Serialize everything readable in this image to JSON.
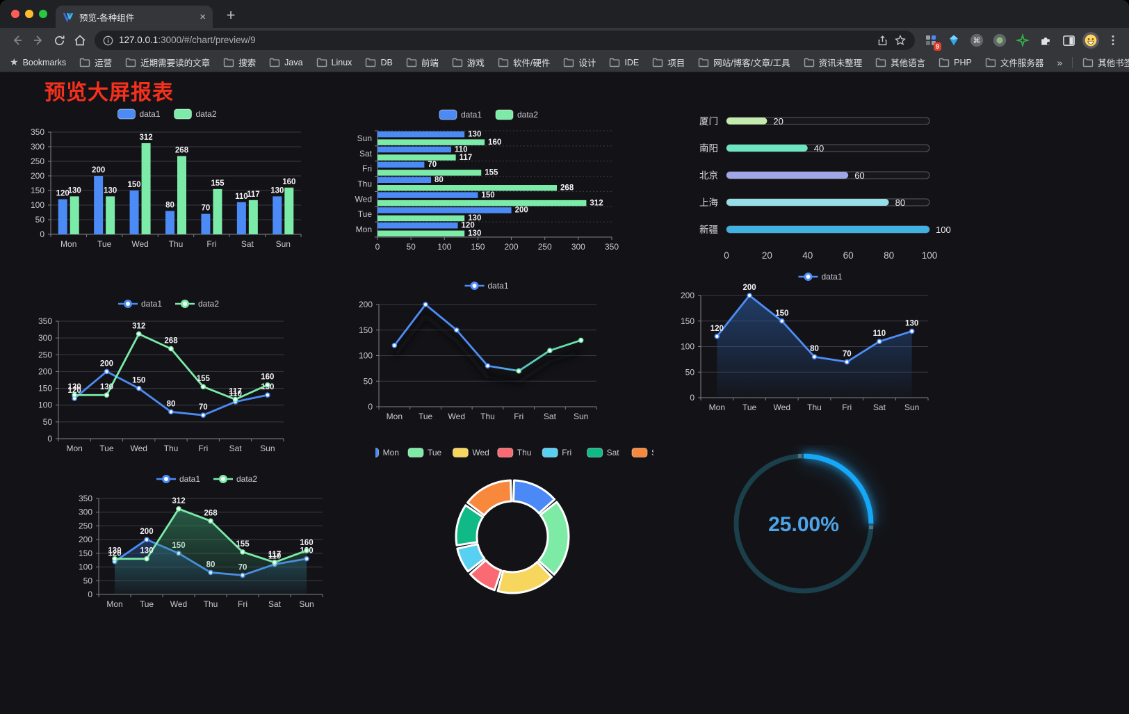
{
  "tab": {
    "title": "预览-各种组件",
    "close_glyph": "×",
    "new_tab_glyph": "+"
  },
  "toolbar": {
    "url_host": "127.0.0.1",
    "url_rest": ":3000/#/chart/preview/9",
    "ext_badge": "9"
  },
  "bookmarks": {
    "label": "Bookmarks",
    "items": [
      "运营",
      "近期需要读的文章",
      "搜索",
      "Java",
      "Linux",
      "DB",
      "前端",
      "游戏",
      "软件/硬件",
      "设计",
      "IDE",
      "项目",
      "网站/博客/文章/工具",
      "资讯未整理",
      "其他语言",
      "PHP",
      "文件服务器"
    ],
    "overflow": "»",
    "other": "其他书签"
  },
  "page": {
    "title": "预览大屏报表",
    "title_color": "#f5311d"
  },
  "palette": {
    "data1_blue": "#4C8BF5",
    "data2_green": "#7CEBA8",
    "grid": "#3a3a44",
    "tick_text": "#c9c9d2"
  },
  "chart_data": [
    {
      "id": "bar-grouped-vertical",
      "type": "bar",
      "categories": [
        "Mon",
        "Tue",
        "Wed",
        "Thu",
        "Fri",
        "Sat",
        "Sun"
      ],
      "series": [
        {
          "name": "data1",
          "color": "#4C8BF5",
          "values": [
            120,
            200,
            150,
            80,
            70,
            110,
            130
          ]
        },
        {
          "name": "data2",
          "color": "#7CEBA8",
          "values": [
            130,
            130,
            312,
            268,
            155,
            117,
            160
          ]
        }
      ],
      "ylim": [
        0,
        350
      ],
      "ystep": 50,
      "legend": "rect",
      "value_labels": true
    },
    {
      "id": "bar-grouped-horizontal",
      "type": "bar",
      "orientation": "horizontal",
      "display_order": "reversed",
      "categories": [
        "Mon",
        "Tue",
        "Wed",
        "Thu",
        "Fri",
        "Sat",
        "Sun"
      ],
      "series": [
        {
          "name": "data1",
          "color": "#4C8BF5",
          "values": [
            120,
            200,
            150,
            80,
            70,
            110,
            130
          ]
        },
        {
          "name": "data2",
          "color": "#7CEBA8",
          "values": [
            130,
            130,
            312,
            268,
            155,
            117,
            160
          ]
        }
      ],
      "xlim": [
        0,
        350
      ],
      "xstep": 50,
      "legend": "rect",
      "value_labels": true
    },
    {
      "id": "progress-bars",
      "type": "bar",
      "subtype": "progress",
      "categories": [
        "厦门",
        "南阳",
        "北京",
        "上海",
        "新疆"
      ],
      "values": [
        20,
        40,
        60,
        80,
        100
      ],
      "colors": [
        "#c4ebad",
        "#6be6c1",
        "#a0a7e6",
        "#96dee8",
        "#3fb1e3"
      ],
      "xlim": [
        0,
        100
      ],
      "xticks": [
        0,
        20,
        40,
        60,
        80,
        100
      ]
    },
    {
      "id": "line-two-series",
      "type": "line",
      "categories": [
        "Mon",
        "Tue",
        "Wed",
        "Thu",
        "Fri",
        "Sat",
        "Sun"
      ],
      "series": [
        {
          "name": "data1",
          "color": "#4C8BF5",
          "values": [
            120,
            200,
            150,
            80,
            70,
            110,
            130
          ]
        },
        {
          "name": "data2",
          "color": "#7CEBA8",
          "values": [
            130,
            130,
            312,
            268,
            155,
            117,
            160
          ]
        }
      ],
      "ylim": [
        0,
        350
      ],
      "ystep": 50,
      "legend": "line",
      "value_labels": true
    },
    {
      "id": "line-gradient-shadow",
      "type": "line",
      "shadow": true,
      "categories": [
        "Mon",
        "Tue",
        "Wed",
        "Thu",
        "Fri",
        "Sat",
        "Sun"
      ],
      "series": [
        {
          "name": "data1",
          "color": "#4E8DF7",
          "gradient": [
            "#4E8DF7",
            "#68E6A5"
          ],
          "values": [
            120,
            200,
            150,
            80,
            70,
            110,
            130
          ]
        }
      ],
      "ylim": [
        0,
        200
      ],
      "ystep": 50,
      "legend": "line",
      "value_labels": false
    },
    {
      "id": "line-area-single",
      "type": "line",
      "categories": [
        "Mon",
        "Tue",
        "Wed",
        "Thu",
        "Fri",
        "Sat",
        "Sun"
      ],
      "series": [
        {
          "name": "data1",
          "color": "#4E8DF7",
          "area": [
            "rgba(45,95,170,0.55)",
            "rgba(45,95,170,0.04)"
          ],
          "values": [
            120,
            200,
            150,
            80,
            70,
            110,
            130
          ]
        }
      ],
      "ylim": [
        0,
        200
      ],
      "ystep": 50,
      "legend": "line",
      "value_labels": true
    },
    {
      "id": "line-area-two-series",
      "type": "line",
      "categories": [
        "Mon",
        "Tue",
        "Wed",
        "Thu",
        "Fri",
        "Sat",
        "Sun"
      ],
      "series": [
        {
          "name": "data1",
          "color": "#4C8BF5",
          "area": [
            "rgba(45,95,170,0.45)",
            "rgba(45,95,170,0.03)"
          ],
          "values": [
            120,
            200,
            150,
            80,
            70,
            110,
            130
          ]
        },
        {
          "name": "data2",
          "color": "#7CEBA8",
          "area": [
            "rgba(58,160,112,0.5)",
            "rgba(58,160,112,0.03)"
          ],
          "values": [
            130,
            130,
            312,
            268,
            155,
            117,
            160
          ]
        }
      ],
      "ylim": [
        0,
        350
      ],
      "ystep": 50,
      "legend": "line",
      "value_labels": true
    },
    {
      "id": "donut",
      "type": "pie",
      "categories": [
        "Mon",
        "Tue",
        "Wed",
        "Thu",
        "Fri",
        "Sat",
        "Sun"
      ],
      "values": [
        120,
        200,
        150,
        80,
        70,
        110,
        130
      ],
      "colors": [
        "#4B8AF6",
        "#7DEBA6",
        "#F6D65C",
        "#FA6A73",
        "#58D0F2",
        "#10BA86",
        "#F8893C"
      ],
      "legend": "rect"
    },
    {
      "id": "gauge",
      "type": "gauge",
      "value": 25,
      "label": "25.00%",
      "color": "#16A8F8",
      "track_color": "#1B3F4B",
      "text_color": "#4DA4E8"
    }
  ]
}
